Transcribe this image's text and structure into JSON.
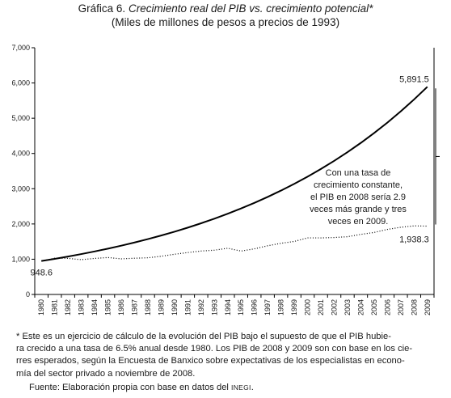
{
  "header": {
    "title_prefix": "Gráfica 6.",
    "title_main": "Crecimiento real del PIB vs. crecimiento potencial*",
    "subtitle": "(Miles de millones de pesos a precios de 1993)"
  },
  "chart_data": {
    "type": "line",
    "title": "Gráfica 6. Crecimiento real del PIB vs. crecimiento potencial*",
    "subtitle": "(Miles de millones de pesos a precios de 1993)",
    "xlabel": "",
    "ylabel": "",
    "ylim": [
      0,
      7000
    ],
    "yticks": [
      0,
      1000,
      2000,
      3000,
      4000,
      5000,
      6000,
      7000
    ],
    "ytick_labels": [
      "0",
      "1,000",
      "2,000",
      "3,000",
      "4,000",
      "5,000",
      "6,000",
      "7,000"
    ],
    "x": [
      1980,
      1981,
      1982,
      1983,
      1984,
      1985,
      1986,
      1987,
      1988,
      1989,
      1990,
      1991,
      1992,
      1993,
      1994,
      1995,
      1996,
      1997,
      1998,
      1999,
      2000,
      2001,
      2002,
      2003,
      2004,
      2005,
      2006,
      2007,
      2008,
      2009
    ],
    "x_labels": [
      "1980",
      "1981",
      "1982",
      "1983",
      "1984",
      "1985",
      "1986",
      "1987",
      "1988",
      "1989",
      "1990",
      "1991",
      "1992",
      "1993",
      "1994",
      "1995",
      "1996",
      "1997",
      "1998",
      "1999",
      "2000",
      "2001",
      "2002",
      "2003",
      "2004",
      "2005",
      "2006",
      "2007",
      "2008",
      "2009"
    ],
    "grid": false,
    "legend": "none",
    "series": [
      {
        "style": "solid",
        "values": [
          948.6,
          1010.3,
          1075.9,
          1145.9,
          1220.4,
          1299.7,
          1384.2,
          1474.2,
          1570.0,
          1672.1,
          1780.7,
          1896.5,
          2019.8,
          2151.1,
          2290.9,
          2439.8,
          2598.4,
          2767.2,
          2947.1,
          3138.7,
          3342.7,
          3560.0,
          3791.4,
          4037.9,
          4300.3,
          4579.9,
          4877.5,
          5194.6,
          5532.2,
          5891.5
        ]
      },
      {
        "style": "dotted",
        "values": [
          948.6,
          1029.6,
          1023.3,
          987.4,
          1022.4,
          1048.0,
          1010.5,
          1028.0,
          1040.3,
          1083.3,
          1140.8,
          1189.0,
          1232.2,
          1256.2,
          1311.7,
          1230.8,
          1294.2,
          1381.5,
          1451.4,
          1503.9,
          1605.1,
          1604.6,
          1616.0,
          1638.1,
          1704.8,
          1759.2,
          1846.1,
          1906.6,
          1945.7,
          1938.3
        ]
      }
    ],
    "data_labels": [
      {
        "text": "948.6",
        "x": 1980,
        "y": 948.6
      },
      {
        "text": "5,891.5",
        "x": 2009,
        "y": 5891.5
      },
      {
        "text": "1,938.3",
        "x": 2009,
        "y": 1938.3
      }
    ],
    "annotation": [
      "Con una tasa de",
      "crecimiento constante,",
      "el PIB en 2008 sería 2.9",
      "veces más grande y tres",
      "veces en 2009."
    ]
  },
  "footnote": {
    "line1": "* Este es un ejercicio de cálculo de la evolución del PIB bajo el supuesto de que el PIB hubie-",
    "line2": "ra crecido a una tasa de 6.5% anual desde 1980. Los PIB de 2008 y 2009 son con base en los cie-",
    "line3": "rres esperados, según la Encuesta de Banxico sobre expectativas de los especialistas en econo-",
    "line4": "mía del sector privado a noviembre de 2008."
  },
  "source": {
    "prefix": "Fuente: Elaboración propia con base en datos del",
    "org": "INEGI",
    "suffix": "."
  }
}
